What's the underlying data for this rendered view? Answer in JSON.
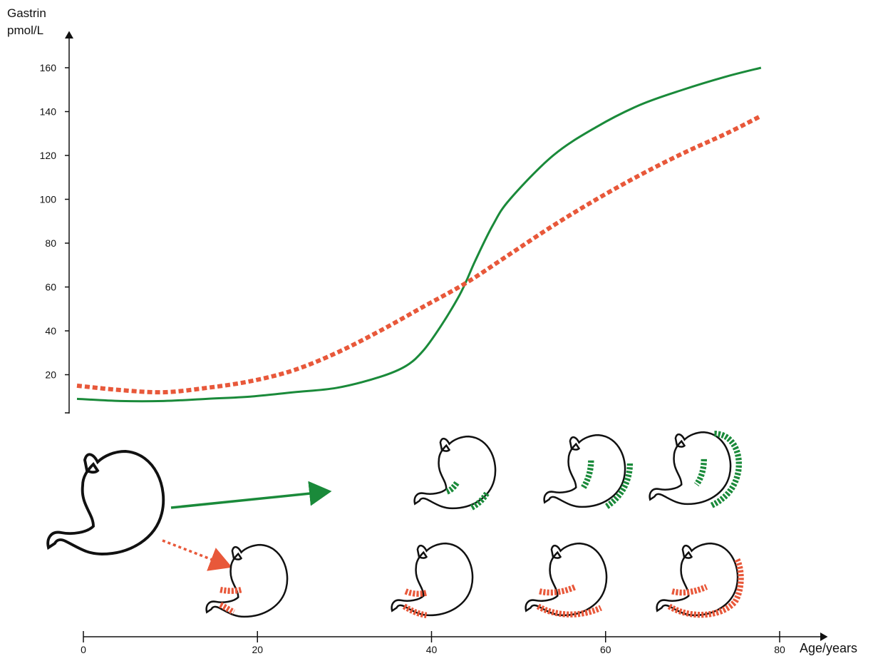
{
  "chart_data": {
    "type": "line",
    "title": "",
    "ylabel_line1": "Gastrin",
    "ylabel_line2": "pmol/L",
    "xlabel": "Age/years",
    "y_ticks": [
      20,
      40,
      60,
      80,
      100,
      120,
      140,
      160
    ],
    "x_ticks": [
      0,
      20,
      40,
      60,
      80
    ],
    "xlim": [
      0,
      80
    ],
    "ylim": [
      3,
      170
    ],
    "grid": false,
    "series": [
      {
        "color": "#1a8a3a",
        "style": "solid",
        "x": [
          0,
          5,
          10,
          15,
          20,
          25,
          30,
          35,
          38,
          40,
          42,
          44,
          45,
          46,
          48,
          50,
          55,
          60,
          65,
          70,
          75,
          79
        ],
        "y": [
          9,
          8,
          8,
          9,
          10,
          12,
          14,
          19,
          24,
          31,
          42,
          55,
          63,
          72,
          88,
          100,
          120,
          133,
          143,
          150,
          156,
          160
        ]
      },
      {
        "color": "#e8583a",
        "style": "dashed",
        "x": [
          0,
          5,
          10,
          15,
          20,
          25,
          30,
          35,
          40,
          45,
          50,
          55,
          60,
          65,
          70,
          75,
          79
        ],
        "y": [
          15,
          13,
          12,
          14,
          17,
          22,
          30,
          40,
          51,
          62,
          75,
          88,
          100,
          111,
          121,
          130,
          138
        ]
      }
    ]
  },
  "illustration": {
    "green_color": "#1a8a3a",
    "red_color": "#e8583a",
    "stomach_stroke": "#111111"
  }
}
